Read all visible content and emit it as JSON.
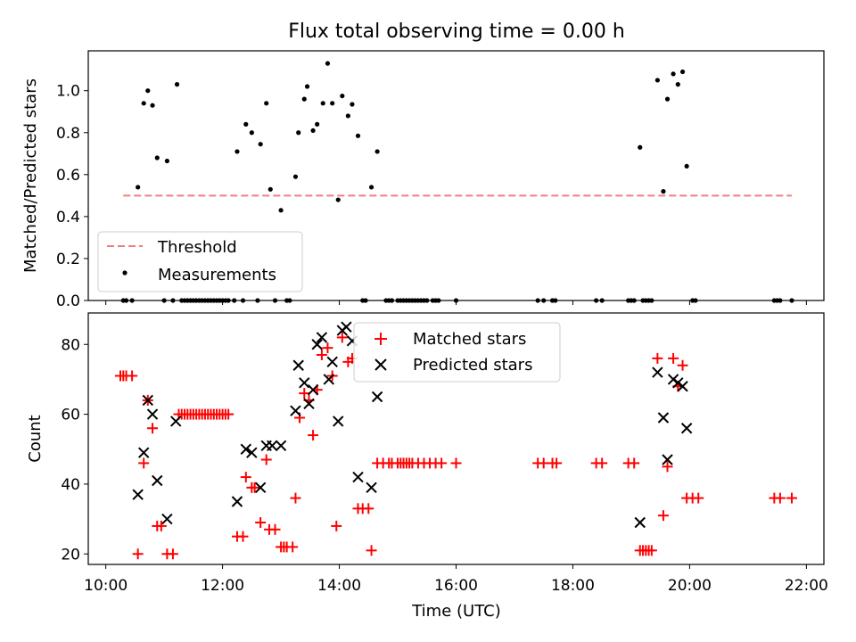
{
  "chart_data": [
    {
      "type": "scatter",
      "title": "Flux total observing time = 0.00 h",
      "ylabel": "Matched/Predicted stars",
      "xlabel": "",
      "ylim": [
        0,
        1.19
      ],
      "xlim": [
        9.7,
        22.3
      ],
      "yticks": [
        0.0,
        0.2,
        0.4,
        0.6,
        0.8,
        1.0
      ],
      "ytick_labels": [
        "0.0",
        "0.2",
        "0.4",
        "0.6",
        "0.8",
        "1.0"
      ],
      "legend_position": "bottom-left",
      "threshold": {
        "name": "Threshold",
        "value": 0.5,
        "x_range": [
          10.3,
          21.75
        ],
        "color": "#f08080"
      },
      "series": [
        {
          "name": "Measurements",
          "color": "#000000",
          "points": [
            [
              10.3,
              0
            ],
            [
              10.35,
              0
            ],
            [
              10.45,
              0
            ],
            [
              10.55,
              0.54
            ],
            [
              10.65,
              0.94
            ],
            [
              10.72,
              1.0
            ],
            [
              10.8,
              0.93
            ],
            [
              10.88,
              0.68
            ],
            [
              11.0,
              0
            ],
            [
              11.05,
              0.665
            ],
            [
              11.15,
              0
            ],
            [
              11.22,
              1.03
            ],
            [
              11.3,
              0
            ],
            [
              11.35,
              0
            ],
            [
              11.4,
              0
            ],
            [
              11.45,
              0
            ],
            [
              11.5,
              0
            ],
            [
              11.55,
              0
            ],
            [
              11.6,
              0
            ],
            [
              11.65,
              0
            ],
            [
              11.7,
              0
            ],
            [
              11.75,
              0
            ],
            [
              11.8,
              0
            ],
            [
              11.85,
              0
            ],
            [
              11.9,
              0
            ],
            [
              11.95,
              0
            ],
            [
              12.0,
              0
            ],
            [
              12.05,
              0
            ],
            [
              12.1,
              0
            ],
            [
              12.2,
              0
            ],
            [
              12.25,
              0.71
            ],
            [
              12.35,
              0
            ],
            [
              12.4,
              0.84
            ],
            [
              12.5,
              0.8
            ],
            [
              12.6,
              0
            ],
            [
              12.65,
              0.745
            ],
            [
              12.75,
              0.94
            ],
            [
              12.82,
              0.53
            ],
            [
              12.9,
              0
            ],
            [
              13.0,
              0.43
            ],
            [
              13.1,
              0
            ],
            [
              13.15,
              0
            ],
            [
              13.25,
              0.59
            ],
            [
              13.3,
              0.8
            ],
            [
              13.4,
              0.96
            ],
            [
              13.45,
              1.02
            ],
            [
              13.55,
              0.81
            ],
            [
              13.62,
              0.84
            ],
            [
              13.72,
              0.94
            ],
            [
              13.8,
              1.13
            ],
            [
              13.88,
              0.94
            ],
            [
              13.98,
              0.48
            ],
            [
              14.05,
              0.975
            ],
            [
              14.15,
              0.88
            ],
            [
              14.22,
              0.935
            ],
            [
              14.32,
              0.785
            ],
            [
              14.4,
              0
            ],
            [
              14.45,
              0
            ],
            [
              14.55,
              0.54
            ],
            [
              14.65,
              0.71
            ],
            [
              14.8,
              0
            ],
            [
              14.85,
              0
            ],
            [
              14.9,
              0
            ],
            [
              15.0,
              0
            ],
            [
              15.05,
              0
            ],
            [
              15.1,
              0
            ],
            [
              15.15,
              0
            ],
            [
              15.2,
              0
            ],
            [
              15.25,
              0
            ],
            [
              15.3,
              0
            ],
            [
              15.35,
              0
            ],
            [
              15.4,
              0
            ],
            [
              15.45,
              0
            ],
            [
              15.5,
              0
            ],
            [
              15.6,
              0
            ],
            [
              15.65,
              0
            ],
            [
              15.7,
              0
            ],
            [
              16.0,
              0
            ],
            [
              17.4,
              0
            ],
            [
              17.5,
              0
            ],
            [
              17.65,
              0
            ],
            [
              17.7,
              0
            ],
            [
              18.4,
              0
            ],
            [
              18.5,
              0
            ],
            [
              18.95,
              0
            ],
            [
              19.0,
              0
            ],
            [
              19.05,
              0
            ],
            [
              19.15,
              0.73
            ],
            [
              19.2,
              0
            ],
            [
              19.25,
              0
            ],
            [
              19.3,
              0
            ],
            [
              19.35,
              0
            ],
            [
              19.45,
              1.05
            ],
            [
              19.55,
              0.52
            ],
            [
              19.62,
              0.96
            ],
            [
              19.72,
              1.08
            ],
            [
              19.8,
              1.03
            ],
            [
              19.88,
              1.09
            ],
            [
              19.95,
              0.64
            ],
            [
              20.05,
              0
            ],
            [
              20.1,
              0
            ],
            [
              21.45,
              0
            ],
            [
              21.5,
              0
            ],
            [
              21.55,
              0
            ],
            [
              21.75,
              0
            ]
          ]
        }
      ]
    },
    {
      "type": "scatter",
      "title": "",
      "xlabel": "Time (UTC)",
      "ylabel": "Count",
      "ylim": [
        17,
        89
      ],
      "xlim": [
        9.7,
        22.3
      ],
      "yticks": [
        20,
        40,
        60,
        80
      ],
      "ytick_labels": [
        "20",
        "40",
        "60",
        "80"
      ],
      "xticks": [
        10,
        12,
        14,
        16,
        18,
        20,
        22
      ],
      "xtick_labels": [
        "10:00",
        "12:00",
        "14:00",
        "16:00",
        "18:00",
        "20:00",
        "22:00"
      ],
      "legend_position": "top-center",
      "series": [
        {
          "name": "Matched stars",
          "color": "#ff0000",
          "marker": "plus",
          "points": [
            [
              10.25,
              71
            ],
            [
              10.3,
              71
            ],
            [
              10.35,
              71
            ],
            [
              10.45,
              71
            ],
            [
              10.55,
              20
            ],
            [
              10.65,
              46
            ],
            [
              10.72,
              64
            ],
            [
              10.8,
              56
            ],
            [
              10.88,
              28
            ],
            [
              10.95,
              28
            ],
            [
              11.05,
              20
            ],
            [
              11.15,
              20
            ],
            [
              11.25,
              60
            ],
            [
              11.3,
              60
            ],
            [
              11.35,
              60
            ],
            [
              11.4,
              60
            ],
            [
              11.45,
              60
            ],
            [
              11.5,
              60
            ],
            [
              11.55,
              60
            ],
            [
              11.6,
              60
            ],
            [
              11.65,
              60
            ],
            [
              11.7,
              60
            ],
            [
              11.75,
              60
            ],
            [
              11.8,
              60
            ],
            [
              11.85,
              60
            ],
            [
              11.9,
              60
            ],
            [
              11.95,
              60
            ],
            [
              12.0,
              60
            ],
            [
              12.05,
              60
            ],
            [
              12.1,
              60
            ],
            [
              12.25,
              25
            ],
            [
              12.35,
              25
            ],
            [
              12.4,
              42
            ],
            [
              12.5,
              39
            ],
            [
              12.55,
              39
            ],
            [
              12.65,
              29
            ],
            [
              12.75,
              47
            ],
            [
              12.8,
              27
            ],
            [
              12.9,
              27
            ],
            [
              13.0,
              22
            ],
            [
              13.05,
              22
            ],
            [
              13.1,
              22
            ],
            [
              13.2,
              22
            ],
            [
              13.25,
              36
            ],
            [
              13.32,
              59
            ],
            [
              13.4,
              66
            ],
            [
              13.48,
              64
            ],
            [
              13.55,
              54
            ],
            [
              13.62,
              67
            ],
            [
              13.7,
              77
            ],
            [
              13.8,
              79
            ],
            [
              13.88,
              71
            ],
            [
              13.95,
              28
            ],
            [
              14.05,
              82
            ],
            [
              14.15,
              75
            ],
            [
              14.22,
              76
            ],
            [
              14.32,
              33
            ],
            [
              14.4,
              33
            ],
            [
              14.5,
              33
            ],
            [
              14.55,
              21
            ],
            [
              14.65,
              46
            ],
            [
              14.75,
              46
            ],
            [
              14.85,
              46
            ],
            [
              14.9,
              46
            ],
            [
              15.0,
              46
            ],
            [
              15.05,
              46
            ],
            [
              15.1,
              46
            ],
            [
              15.15,
              46
            ],
            [
              15.2,
              46
            ],
            [
              15.25,
              46
            ],
            [
              15.35,
              46
            ],
            [
              15.45,
              46
            ],
            [
              15.55,
              46
            ],
            [
              15.65,
              46
            ],
            [
              15.75,
              46
            ],
            [
              16.0,
              46
            ],
            [
              17.4,
              46
            ],
            [
              17.5,
              46
            ],
            [
              17.65,
              46
            ],
            [
              17.72,
              46
            ],
            [
              18.4,
              46
            ],
            [
              18.5,
              46
            ],
            [
              18.95,
              46
            ],
            [
              19.05,
              46
            ],
            [
              19.15,
              21
            ],
            [
              19.2,
              21
            ],
            [
              19.25,
              21
            ],
            [
              19.3,
              21
            ],
            [
              19.35,
              21
            ],
            [
              19.45,
              76
            ],
            [
              19.55,
              31
            ],
            [
              19.62,
              45
            ],
            [
              19.72,
              76
            ],
            [
              19.8,
              68
            ],
            [
              19.88,
              74
            ],
            [
              19.95,
              36
            ],
            [
              20.05,
              36
            ],
            [
              20.15,
              36
            ],
            [
              21.45,
              36
            ],
            [
              21.55,
              36
            ],
            [
              21.75,
              36
            ]
          ]
        },
        {
          "name": "Predicted stars",
          "color": "#000000",
          "marker": "x",
          "points": [
            [
              10.55,
              37
            ],
            [
              10.65,
              49
            ],
            [
              10.72,
              64
            ],
            [
              10.8,
              60
            ],
            [
              10.88,
              41
            ],
            [
              11.05,
              30
            ],
            [
              11.2,
              58
            ],
            [
              12.25,
              35
            ],
            [
              12.4,
              50
            ],
            [
              12.5,
              49
            ],
            [
              12.65,
              39
            ],
            [
              12.75,
              51
            ],
            [
              12.85,
              51
            ],
            [
              13.0,
              51
            ],
            [
              13.25,
              61
            ],
            [
              13.3,
              74
            ],
            [
              13.4,
              69
            ],
            [
              13.48,
              63
            ],
            [
              13.55,
              67
            ],
            [
              13.62,
              80
            ],
            [
              13.7,
              82
            ],
            [
              13.82,
              70
            ],
            [
              13.88,
              75
            ],
            [
              13.98,
              58
            ],
            [
              14.05,
              84
            ],
            [
              14.12,
              85
            ],
            [
              14.22,
              81
            ],
            [
              14.32,
              42
            ],
            [
              14.55,
              39
            ],
            [
              14.65,
              65
            ],
            [
              19.15,
              29
            ],
            [
              19.45,
              72
            ],
            [
              19.55,
              59
            ],
            [
              19.62,
              47
            ],
            [
              19.72,
              70
            ],
            [
              19.8,
              69
            ],
            [
              19.88,
              68
            ],
            [
              19.95,
              56
            ]
          ]
        }
      ]
    }
  ]
}
